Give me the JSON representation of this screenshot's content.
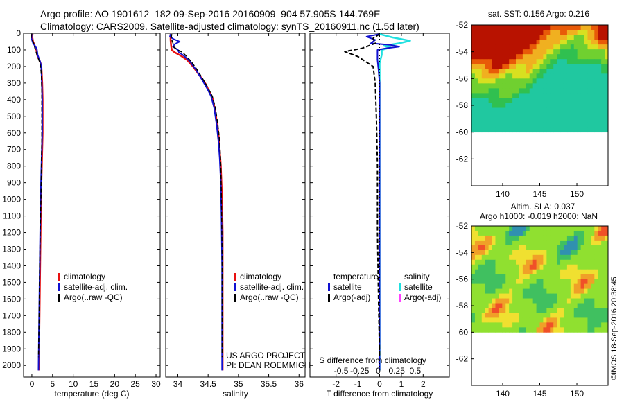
{
  "title": {
    "line1": "Argo profile: AO 1901612_182 09-Sep-2016 20160909_904 57.905S 144.769E",
    "line2": "Climatology: CARS2009. Satellite-adjusted climatology: synTS_20160911.nc (1.5d later)"
  },
  "footer_text": "©IMOS 18-Sep-2016 20:38:45",
  "credit": {
    "line1": "US ARGO PROJECT",
    "line2": "PI: DEAN ROEMMICH"
  },
  "colors": {
    "climatology": "#e81010",
    "satellite": "#1010d0",
    "argo": "#000000",
    "satellite_s": "#20e0e0",
    "argo_s": "#ff40ff"
  },
  "chart_data": [
    {
      "type": "line",
      "name": "temperature-panel",
      "xlabel": "temperature (deg C)",
      "xlim": [
        -2,
        31
      ],
      "ylim": [
        2070,
        0
      ],
      "xticks": [
        "0",
        "5",
        "10",
        "15",
        "20",
        "25",
        "30"
      ],
      "xtick_values": [
        0,
        5,
        10,
        15,
        20,
        25,
        30
      ],
      "yticks": [
        "0",
        "100",
        "200",
        "300",
        "400",
        "500",
        "600",
        "700",
        "800",
        "900",
        "1000",
        "1100",
        "1200",
        "1300",
        "1400",
        "1500",
        "1600",
        "1700",
        "1800",
        "1900",
        "2000"
      ],
      "ytick_values": [
        0,
        100,
        200,
        300,
        400,
        500,
        600,
        700,
        800,
        900,
        1000,
        1100,
        1200,
        1300,
        1400,
        1500,
        1600,
        1700,
        1800,
        1900,
        2000
      ],
      "legend": [
        {
          "label": "climatology",
          "color": "#e81010"
        },
        {
          "label": "satellite-adj. clim.",
          "color": "#1010d0"
        },
        {
          "label": "Argo(..raw -QC)",
          "color": "#000000"
        }
      ],
      "series": [
        {
          "color": "#e81010",
          "dash": false,
          "width": 2.5,
          "points": [
            [
              0.2,
              5
            ],
            [
              0.1,
              20
            ],
            [
              0.3,
              50
            ],
            [
              0.8,
              80
            ],
            [
              1.1,
              100
            ],
            [
              1.2,
              120
            ],
            [
              1.4,
              140
            ],
            [
              1.8,
              160
            ],
            [
              2.1,
              180
            ],
            [
              2.3,
              200
            ],
            [
              2.4,
              250
            ],
            [
              2.5,
              300
            ],
            [
              2.6,
              400
            ],
            [
              2.6,
              500
            ],
            [
              2.6,
              600
            ],
            [
              2.5,
              700
            ],
            [
              2.4,
              800
            ],
            [
              2.3,
              900
            ],
            [
              2.2,
              1000
            ],
            [
              2.1,
              1200
            ],
            [
              2.0,
              1400
            ],
            [
              1.9,
              1600
            ],
            [
              1.8,
              1800
            ],
            [
              1.7,
              1960
            ],
            [
              1.7,
              2030
            ]
          ]
        },
        {
          "color": "#1010d0",
          "dash": false,
          "width": 2,
          "points": [
            [
              0.0,
              5
            ],
            [
              -0.1,
              30
            ],
            [
              0.3,
              60
            ],
            [
              0.9,
              80
            ],
            [
              1.2,
              95
            ],
            [
              1.3,
              110
            ],
            [
              1.4,
              130
            ],
            [
              1.7,
              150
            ],
            [
              2.0,
              170
            ],
            [
              2.2,
              190
            ],
            [
              2.3,
              220
            ],
            [
              2.4,
              300
            ],
            [
              2.5,
              400
            ],
            [
              2.5,
              500
            ],
            [
              2.5,
              600
            ],
            [
              2.4,
              700
            ],
            [
              2.3,
              800
            ],
            [
              2.2,
              900
            ],
            [
              2.1,
              1000
            ],
            [
              2.0,
              1200
            ],
            [
              1.9,
              1400
            ],
            [
              1.8,
              1600
            ],
            [
              1.7,
              1800
            ],
            [
              1.6,
              2030
            ]
          ]
        },
        {
          "color": "#000000",
          "dash": true,
          "width": 1.5,
          "points": [
            [
              0.0,
              5
            ],
            [
              -0.2,
              25
            ],
            [
              0.4,
              55
            ],
            [
              0.6,
              75
            ],
            [
              0.8,
              95
            ],
            [
              1.0,
              110
            ],
            [
              1.3,
              135
            ],
            [
              1.6,
              155
            ],
            [
              1.9,
              175
            ],
            [
              2.1,
              200
            ],
            [
              2.3,
              250
            ],
            [
              2.4,
              350
            ],
            [
              2.4,
              500
            ],
            [
              2.4,
              650
            ],
            [
              2.3,
              800
            ],
            [
              2.2,
              1000
            ],
            [
              2.0,
              1200
            ],
            [
              1.9,
              1400
            ],
            [
              1.8,
              1600
            ],
            [
              1.7,
              1800
            ],
            [
              1.6,
              1950
            ]
          ]
        }
      ]
    },
    {
      "type": "line",
      "name": "salinity-panel",
      "xlabel": "salinity",
      "xlim": [
        33.8,
        36.1
      ],
      "ylim": [
        2070,
        0
      ],
      "xticks": [
        "34",
        "34.5",
        "35",
        "35.5",
        "36"
      ],
      "xtick_values": [
        34,
        34.5,
        35,
        35.5,
        36
      ],
      "legend": [
        {
          "label": "climatology",
          "color": "#e81010"
        },
        {
          "label": "satellite-adj. clim.",
          "color": "#1010d0"
        },
        {
          "label": "Argo(..raw -QC)",
          "color": "#000000"
        }
      ],
      "series": [
        {
          "color": "#e81010",
          "dash": false,
          "width": 2.5,
          "points": [
            [
              33.88,
              5
            ],
            [
              33.88,
              40
            ],
            [
              33.89,
              80
            ],
            [
              33.9,
              100
            ],
            [
              33.95,
              115
            ],
            [
              34.05,
              135
            ],
            [
              34.15,
              160
            ],
            [
              34.25,
              200
            ],
            [
              34.35,
              250
            ],
            [
              34.45,
              300
            ],
            [
              34.52,
              350
            ],
            [
              34.58,
              400
            ],
            [
              34.63,
              500
            ],
            [
              34.67,
              600
            ],
            [
              34.69,
              700
            ],
            [
              34.71,
              800
            ],
            [
              34.72,
              900
            ],
            [
              34.73,
              1000
            ],
            [
              34.74,
              1200
            ],
            [
              34.74,
              1500
            ],
            [
              34.74,
              1800
            ],
            [
              34.74,
              2030
            ]
          ]
        },
        {
          "color": "#1010d0",
          "dash": false,
          "width": 2,
          "points": [
            [
              33.88,
              5
            ],
            [
              33.87,
              20
            ],
            [
              33.93,
              35
            ],
            [
              34.03,
              50
            ],
            [
              33.95,
              65
            ],
            [
              33.92,
              80
            ],
            [
              33.96,
              90
            ],
            [
              34.0,
              100
            ],
            [
              34.02,
              115
            ],
            [
              34.1,
              135
            ],
            [
              34.2,
              170
            ],
            [
              34.3,
              220
            ],
            [
              34.4,
              280
            ],
            [
              34.48,
              330
            ],
            [
              34.55,
              380
            ],
            [
              34.6,
              450
            ],
            [
              34.64,
              550
            ],
            [
              34.67,
              650
            ],
            [
              34.69,
              750
            ],
            [
              34.71,
              900
            ],
            [
              34.72,
              1100
            ],
            [
              34.73,
              1400
            ],
            [
              34.73,
              1700
            ],
            [
              34.73,
              2030
            ]
          ]
        },
        {
          "color": "#000000",
          "dash": true,
          "width": 1.5,
          "points": [
            [
              33.9,
              5
            ],
            [
              33.89,
              30
            ],
            [
              33.92,
              60
            ],
            [
              33.94,
              85
            ],
            [
              34.0,
              100
            ],
            [
              34.08,
              115
            ],
            [
              34.12,
              130
            ],
            [
              34.22,
              170
            ],
            [
              34.32,
              220
            ],
            [
              34.42,
              280
            ],
            [
              34.5,
              330
            ],
            [
              34.57,
              380
            ],
            [
              34.62,
              450
            ],
            [
              34.66,
              550
            ],
            [
              34.69,
              650
            ],
            [
              34.71,
              800
            ],
            [
              34.72,
              1000
            ],
            [
              34.73,
              1300
            ],
            [
              34.73,
              1600
            ],
            [
              34.73,
              1950
            ]
          ]
        }
      ],
      "credit_note": true
    },
    {
      "type": "line",
      "name": "difference-panel",
      "xlabel": "T difference from climatology",
      "xlabel_top": "S difference from climatology",
      "xlim": [
        -3.2,
        3.2
      ],
      "ylim": [
        2070,
        0
      ],
      "xticks": [
        "-2",
        "-1",
        "0",
        "1",
        "2"
      ],
      "xtick_values": [
        -2,
        -1,
        0,
        1,
        2
      ],
      "s_ticks": [
        "-0.5",
        "-0.25",
        "0",
        "0.25",
        "0.5"
      ],
      "s_tick_values": [
        -2,
        -1,
        0,
        1,
        2
      ],
      "legend_groups": [
        {
          "title": "temperature",
          "items": [
            {
              "label": "satellite",
              "color": "#1010d0"
            },
            {
              "label": "Argo(-adj)",
              "color": "#000000"
            }
          ]
        },
        {
          "title": "salinity",
          "items": [
            {
              "label": "satellite",
              "color": "#20e0e0"
            },
            {
              "label": "Argo(-adj)",
              "color": "#ff40ff"
            }
          ]
        }
      ],
      "series": [
        {
          "color": "#20e0e0",
          "dash": false,
          "width": 2.5,
          "points": [
            [
              0.0,
              5
            ],
            [
              0.6,
              25
            ],
            [
              1.4,
              45
            ],
            [
              0.9,
              60
            ],
            [
              0.2,
              75
            ],
            [
              0.5,
              85
            ],
            [
              0.1,
              100
            ],
            [
              0.1,
              130
            ],
            [
              0.0,
              180
            ],
            [
              0.0,
              300
            ],
            [
              0.0,
              600
            ],
            [
              0.0,
              1000
            ],
            [
              0.0,
              1500
            ],
            [
              0.0,
              2030
            ]
          ]
        },
        {
          "color": "#1010d0",
          "dash": false,
          "width": 2,
          "points": [
            [
              0.0,
              5
            ],
            [
              -0.6,
              20
            ],
            [
              -0.2,
              40
            ],
            [
              -0.4,
              60
            ],
            [
              0.5,
              70
            ],
            [
              0.9,
              80
            ],
            [
              0.3,
              90
            ],
            [
              -0.1,
              100
            ],
            [
              -0.1,
              120
            ],
            [
              -0.1,
              160
            ],
            [
              -0.05,
              220
            ],
            [
              0.0,
              300
            ],
            [
              0.0,
              600
            ],
            [
              0.0,
              1000
            ],
            [
              0.0,
              1500
            ],
            [
              0.0,
              2030
            ]
          ]
        },
        {
          "color": "#000000",
          "dash": true,
          "width": 2,
          "points": [
            [
              0.0,
              5
            ],
            [
              -0.3,
              30
            ],
            [
              -0.2,
              60
            ],
            [
              -0.8,
              90
            ],
            [
              -1.6,
              110
            ],
            [
              -1.0,
              140
            ],
            [
              -0.3,
              200
            ],
            [
              -0.2,
              300
            ],
            [
              -0.15,
              500
            ],
            [
              -0.1,
              800
            ],
            [
              -0.1,
              1200
            ],
            [
              -0.05,
              1600
            ],
            [
              0.0,
              1950
            ]
          ]
        }
      ]
    },
    {
      "type": "heatmap",
      "name": "sst-map",
      "title": "sat. SST: 0.156 Argo: 0.216",
      "xticks": [
        "140",
        "145",
        "150"
      ],
      "xtick_values": [
        140,
        145,
        150
      ],
      "yticks": [
        "-52",
        "-54",
        "-56",
        "-58",
        "-60",
        "-62"
      ],
      "ytick_values": [
        -52,
        -54,
        -56,
        -58,
        -60,
        -62
      ],
      "xlim": [
        135.8,
        154.2
      ],
      "ylim": [
        -64,
        -52
      ],
      "data_ylim": [
        -60,
        -52
      ]
    },
    {
      "type": "heatmap",
      "name": "sla-map",
      "title": "Altim. SLA: 0.037",
      "subtitle": "Argo h1000: -0.019 h2000: NaN",
      "xticks": [
        "140",
        "145",
        "150"
      ],
      "xtick_values": [
        140,
        145,
        150
      ],
      "yticks": [
        "-52",
        "-54",
        "-56",
        "-58",
        "-60",
        "-62"
      ],
      "ytick_values": [
        -52,
        -54,
        -56,
        -58,
        -60,
        -62
      ],
      "xlim": [
        135.8,
        154.2
      ],
      "ylim": [
        -64,
        -52
      ],
      "data_ylim": [
        -60,
        -52
      ]
    }
  ]
}
